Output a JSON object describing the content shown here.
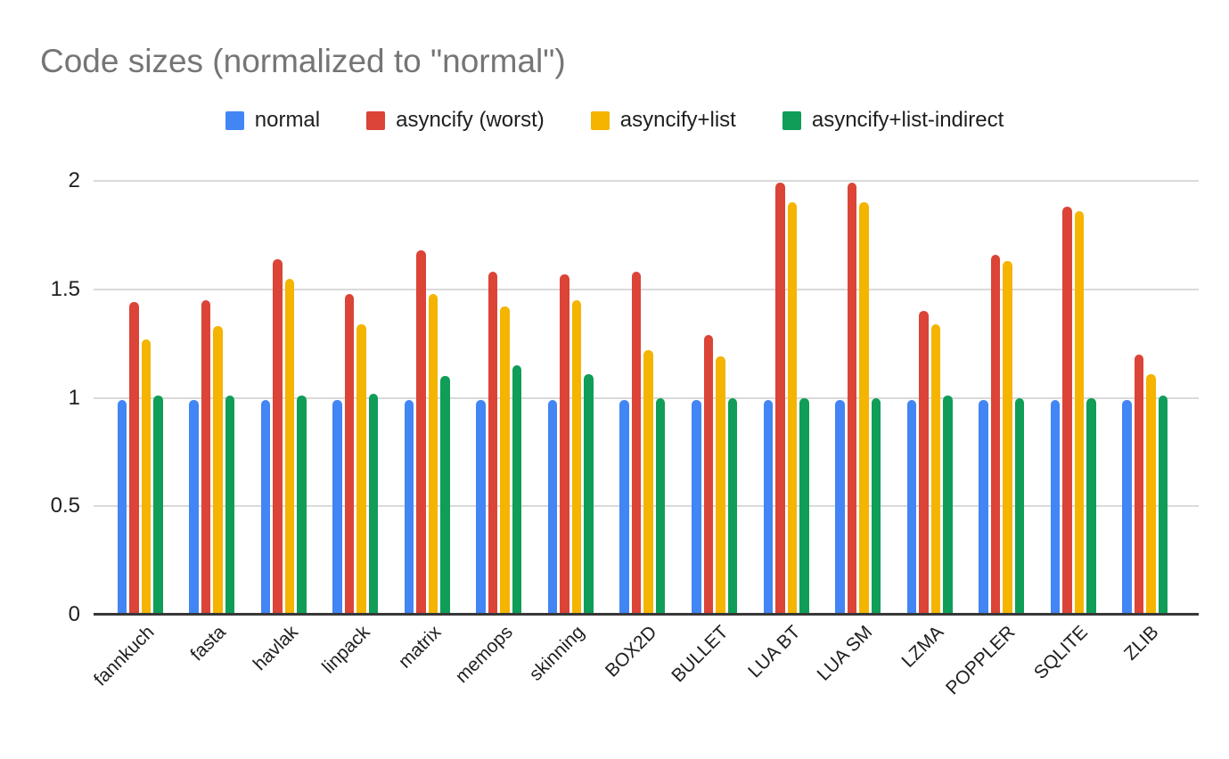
{
  "title": "Code sizes (normalized to \"normal\")",
  "colors": {
    "title_text": "#757575",
    "axis_text": "#1f1f1f",
    "gridline": "#dadada",
    "axis_line": "#383838",
    "series_blue": "#4285F4",
    "series_red": "#DB4437",
    "series_yellow": "#F4B400",
    "series_green": "#0F9D58"
  },
  "chart_data": {
    "type": "bar",
    "title": "Code sizes (normalized to \"normal\")",
    "xlabel": "",
    "ylabel": "",
    "grid": true,
    "legend_position": "top",
    "ylim": [
      0,
      2
    ],
    "yticks": [
      0,
      0.5,
      1,
      1.5,
      2
    ],
    "ytick_labels": [
      "0",
      "0.5",
      "1",
      "1.5",
      "2"
    ],
    "categories": [
      "fannkuch",
      "fasta",
      "havlak",
      "linpack",
      "matrix",
      "memops",
      "skinning",
      "BOX2D",
      "BULLET",
      "LUA BT",
      "LUA SM",
      "LZMA",
      "POPPLER",
      "SQLITE",
      "ZLIB"
    ],
    "series": [
      {
        "name": "normal",
        "color": "#4285F4",
        "values": [
          0.99,
          0.99,
          0.99,
          0.99,
          0.99,
          0.99,
          0.99,
          0.99,
          0.99,
          0.99,
          0.99,
          0.99,
          0.99,
          0.99,
          0.99
        ]
      },
      {
        "name": "asyncify (worst)",
        "color": "#DB4437",
        "values": [
          1.44,
          1.45,
          1.64,
          1.48,
          1.68,
          1.58,
          1.57,
          1.58,
          1.29,
          1.99,
          1.99,
          1.4,
          1.66,
          1.88,
          1.2
        ]
      },
      {
        "name": "asyncify+list",
        "color": "#F4B400",
        "values": [
          1.27,
          1.33,
          1.55,
          1.34,
          1.48,
          1.42,
          1.45,
          1.22,
          1.19,
          1.9,
          1.9,
          1.34,
          1.63,
          1.86,
          1.11
        ]
      },
      {
        "name": "asyncify+list-indirect",
        "color": "#0F9D58",
        "values": [
          1.01,
          1.01,
          1.01,
          1.02,
          1.1,
          1.15,
          1.11,
          1.0,
          1.0,
          1.0,
          1.0,
          1.01,
          1.0,
          1.0,
          1.01
        ]
      }
    ]
  }
}
